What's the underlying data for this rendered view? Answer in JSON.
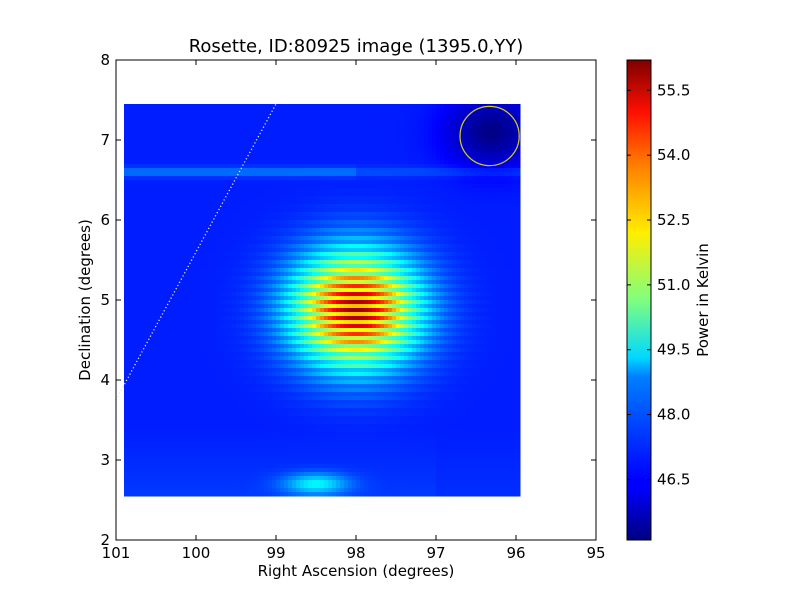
{
  "chart_data": {
    "type": "heatmap",
    "title": "Rosette, ID:80925 image (1395.0,YY)",
    "xlabel": "Right Ascension (degrees)",
    "ylabel": "Declination (degrees)",
    "xlim": [
      101,
      95
    ],
    "ylim": [
      2,
      8
    ],
    "xticks": [
      101,
      100,
      99,
      98,
      97,
      96,
      95
    ],
    "yticks": [
      2,
      3,
      4,
      5,
      6,
      7,
      8
    ],
    "data_extent": {
      "ra": [
        100.9,
        95.95
      ],
      "dec": [
        2.55,
        7.45
      ]
    },
    "colormap": "jet",
    "colorbar": {
      "label": "Power in Kelvin",
      "range": [
        45.1,
        56.2
      ],
      "ticks": [
        "46.5",
        "48.0",
        "49.5",
        "51.0",
        "52.5",
        "54.0",
        "55.5"
      ]
    },
    "background_level": 46.8,
    "features": [
      {
        "name": "peak",
        "ra": 98.0,
        "dec": 4.88,
        "value": 56.0
      },
      {
        "name": "horizontal stripe",
        "dec": 6.6,
        "value": 47.8
      },
      {
        "name": "low-value corner",
        "ra": 96.3,
        "dec": 7.1,
        "value": 45.2
      },
      {
        "name": "lower-edge rise",
        "ra": 98.5,
        "dec": 2.7,
        "value": 49.0
      }
    ],
    "beam_circle": {
      "ra": 96.33,
      "dec": 7.05,
      "radius_deg": 0.37,
      "color": "#d8d020"
    },
    "dotted_line": {
      "from": {
        "ra": 101.0,
        "dec": 3.75
      },
      "to": {
        "ra": 99.0,
        "dec": 7.45
      },
      "color": "#e8e8c0"
    },
    "grid": false,
    "legend": "none"
  }
}
